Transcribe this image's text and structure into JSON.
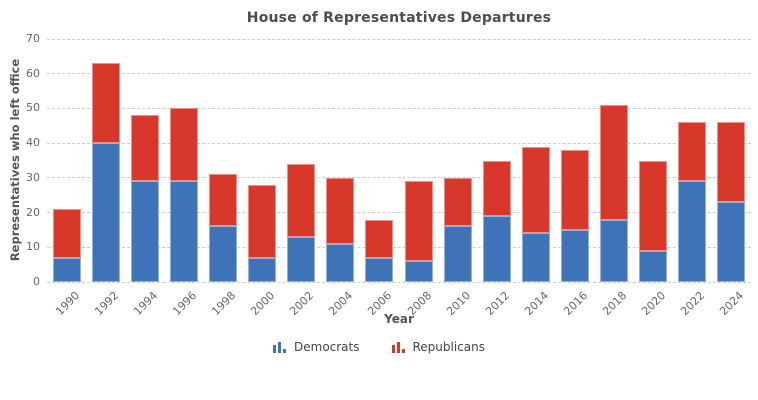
{
  "title": "House of Representatives Departures",
  "chart_data": {
    "type": "bar",
    "stacked": true,
    "title": "House of Representatives Departures",
    "xlabel": "Year",
    "ylabel": "Representatives who left office",
    "categories": [
      "1990",
      "1992",
      "1994",
      "1996",
      "1998",
      "2000",
      "2002",
      "2004",
      "2006",
      "2008",
      "2010",
      "2012",
      "2014",
      "2016",
      "2018",
      "2020",
      "2022",
      "2024"
    ],
    "series": [
      {
        "name": "Democrats",
        "color": "#3e73b8",
        "values": [
          7,
          40,
          29,
          29,
          16,
          7,
          13,
          11,
          7,
          6,
          16,
          19,
          14,
          15,
          18,
          9,
          29,
          23
        ]
      },
      {
        "name": "Republicans",
        "color": "#d7382a",
        "values": [
          14,
          23,
          19,
          21,
          15,
          21,
          21,
          19,
          11,
          23,
          14,
          16,
          25,
          23,
          33,
          26,
          17,
          23
        ]
      }
    ],
    "totals": [
      21,
      63,
      48,
      50,
      31,
      28,
      34,
      30,
      18,
      29,
      30,
      35,
      39,
      38,
      51,
      35,
      46,
      46
    ],
    "ylim": [
      0,
      70
    ],
    "yticks": [
      0,
      10,
      20,
      30,
      40,
      50,
      60,
      70
    ],
    "grid": "horizontal-dashed",
    "legend_position": "bottom"
  },
  "colors": {
    "democrats": "#3e73b8",
    "republicans": "#d7382a",
    "gridline": "#cccccc",
    "tick_text": "#666666",
    "title_text": "#4d4d4d",
    "axis_title_text": "#555555",
    "background": "#ffffff"
  }
}
